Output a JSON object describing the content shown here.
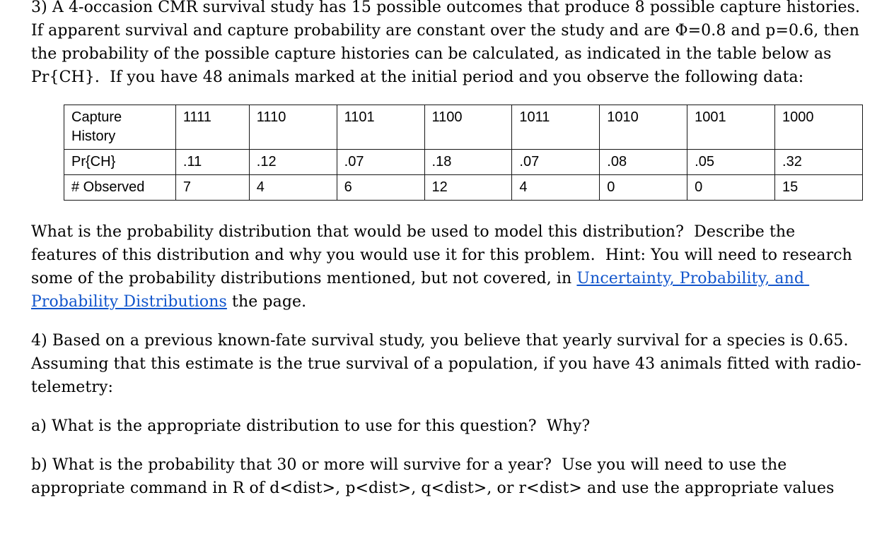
{
  "page": {
    "background": "#ffffff",
    "text_color": "#000000",
    "link_color": "#1155cc"
  },
  "q3": {
    "intro": "3) A 4-occasion CMR survival study has 15 possible outcomes that produce 8 possible capture histories. If apparent survival and capture probability are constant over the study and are Φ=0.8 and p=0.6, then the probability of the possible capture histories can be calculated, as indicated in the table below as Pr{CH}.  If you have 48 animals marked at the initial period and you observe the following data:",
    "table": {
      "row_labels": [
        "Capture\nHistory",
        "Pr{CH}",
        "# Observed"
      ],
      "capture_histories": [
        "1111",
        "1110",
        "1101",
        "1100",
        "1011",
        "1010",
        "1001",
        "1000"
      ],
      "pr_ch": [
        ".11",
        ".12",
        ".07",
        ".18",
        ".07",
        ".08",
        ".05",
        ".32"
      ],
      "observed": [
        "7",
        "4",
        "6",
        "12",
        "4",
        "0",
        "0",
        "15"
      ]
    },
    "prompt": {
      "before_link": "What is the probability distribution that would be used to model this distribution?  Describe the features of this distribution and why you would use it for this problem.  Hint: You will need to research some of the probability distributions mentioned, but not covered, in ",
      "link_text": "Uncertainty, Probability, and Probability Distributions",
      "after_link": " the page."
    }
  },
  "q4": {
    "intro": "4) Based on a previous known-fate survival study, you believe that yearly survival for a species is 0.65. Assuming that this estimate is the true survival of a population, if you have 43 animals fitted with radio-telemetry:",
    "part_a": "a) What is the appropriate distribution to use for this question?  Why?",
    "part_b": "b) What is the probability that 30 or more will survive for a year?  Use you will need to use the appropriate command in R of d<dist>, p<dist>, q<dist>, or r<dist> and use the appropriate values"
  }
}
